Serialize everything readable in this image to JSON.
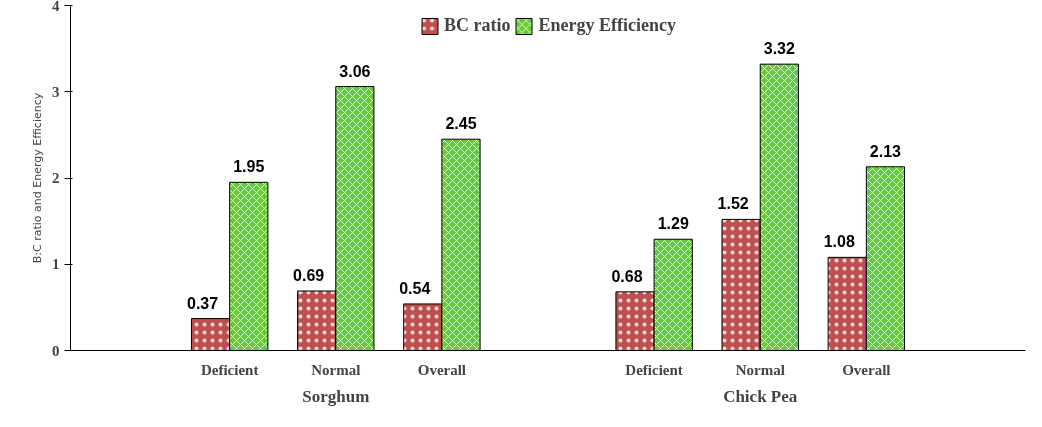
{
  "chart_data": {
    "type": "bar",
    "ylabel": "B:C ratio and Energy Efficiency",
    "categories": [
      null,
      "Deficient",
      "Normal",
      "Overall",
      null,
      "Deficient",
      "Normal",
      "Overall",
      null
    ],
    "series": [
      {
        "name": "BC ratio",
        "color": "#c0504d",
        "values": [
          null,
          0.37,
          0.69,
          0.54,
          null,
          0.68,
          1.52,
          1.08,
          null
        ]
      },
      {
        "name": "Energy Efficiency",
        "color": "#66cc33",
        "values": [
          null,
          1.95,
          3.06,
          2.45,
          null,
          1.29,
          3.32,
          2.13,
          null
        ]
      }
    ],
    "annotations": [
      "Sorghum",
      "Chick Pea"
    ],
    "ylim": [
      0,
      4
    ],
    "yticks": [
      0,
      1,
      2,
      3,
      4
    ],
    "grid": false,
    "legend": "top",
    "data_labels": true
  }
}
